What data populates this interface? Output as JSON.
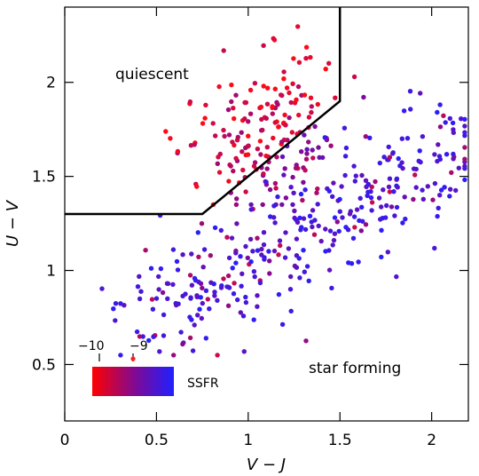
{
  "chart_data": {
    "type": "scatter",
    "title": "",
    "xlabel": "V − J",
    "ylabel": "U − V",
    "xlim": [
      0,
      2.2
    ],
    "ylim": [
      0.2,
      2.4
    ],
    "xticks": [
      "0",
      "0.5",
      "1",
      "1.5",
      "2"
    ],
    "yticks": [
      "0.5",
      "1",
      "1.5",
      "2"
    ],
    "x_tick_values": [
      0,
      0.5,
      1,
      1.5,
      2
    ],
    "y_tick_values": [
      0.5,
      1,
      1.5,
      2
    ],
    "grid": false,
    "selection_boundary": [
      [
        0,
        1.3
      ],
      [
        0.75,
        1.3
      ],
      [
        1.5,
        1.9
      ],
      [
        1.5,
        2.4
      ]
    ],
    "region_labels": {
      "quiescent": "quiescent",
      "star_forming": "star forming"
    },
    "colorbar": {
      "label": "SSFR",
      "tick_labels": [
        "−10",
        "−9"
      ],
      "low_color": "#ff0000",
      "high_color": "#2020ff",
      "ssfr_range": [
        -10.5,
        -8.5
      ]
    },
    "point_count": 540,
    "quiescent_fraction": 0.35,
    "random_seed": 20240517
  }
}
